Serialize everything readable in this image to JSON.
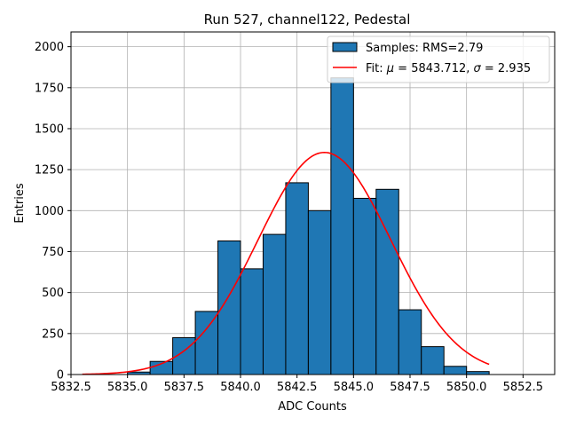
{
  "chart_data": {
    "type": "bar",
    "title": "Run 527, channel122, Pedestal",
    "xlabel": "ADC Counts",
    "ylabel": "Entries",
    "xlim": [
      5832.5,
      5853.9
    ],
    "ylim": [
      0,
      2090
    ],
    "grid": true,
    "legend_position": "top-right",
    "bin_edges": [
      5835,
      5836,
      5837,
      5838,
      5839,
      5840,
      5841,
      5842,
      5843,
      5844,
      5845,
      5846,
      5847,
      5848,
      5849,
      5850,
      5851
    ],
    "counts": [
      15,
      80,
      225,
      385,
      815,
      645,
      855,
      1170,
      1000,
      1810,
      1075,
      1130,
      395,
      170,
      50,
      18
    ],
    "x_ticks": [
      5832.5,
      5835.0,
      5837.5,
      5840.0,
      5842.5,
      5845.0,
      5847.5,
      5850.0,
      5852.5
    ],
    "x_tick_labels": [
      "5832.5",
      "5835.0",
      "5837.5",
      "5840.0",
      "5842.5",
      "5845.0",
      "5847.5",
      "5850.0",
      "5852.5"
    ],
    "y_ticks": [
      0,
      250,
      500,
      750,
      1000,
      1250,
      1500,
      1750,
      2000
    ],
    "y_tick_labels": [
      "0",
      "250",
      "500",
      "750",
      "1000",
      "1250",
      "1500",
      "1750",
      "2000"
    ],
    "series": [
      {
        "name": "Samples: RMS=2.79",
        "kind": "histogram",
        "color": "#1f77b4"
      },
      {
        "name": "Fit: μ = 5843.712, σ = 2.935",
        "kind": "line",
        "color": "#ff0000",
        "mu": 5843.712,
        "sigma": 2.935,
        "amplitude": 1355,
        "x_range": [
          5833,
          5851
        ]
      }
    ],
    "legend": {
      "hist_prefix": "Samples: RMS=2.79",
      "fit_prefix": "Fit: ",
      "mu_symbol": "μ",
      "mu_value": " = 5843.712, ",
      "sigma_symbol": "σ",
      "sigma_value": " = 2.935"
    }
  }
}
